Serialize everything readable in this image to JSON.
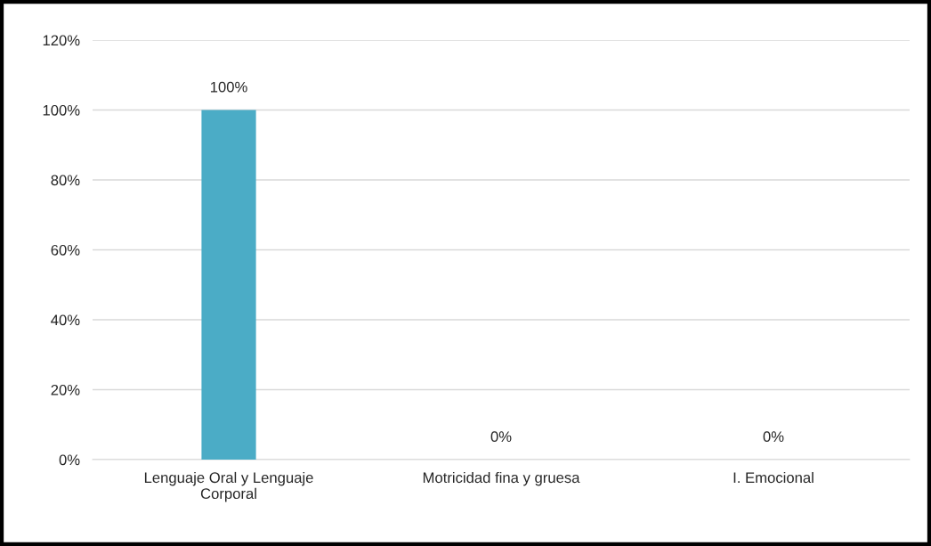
{
  "chart_data": {
    "type": "bar",
    "categories": [
      "Lenguaje Oral y Lenguaje\nCorporal",
      "Motricidad fina y gruesa",
      "I. Emocional"
    ],
    "values": [
      100,
      0,
      0
    ],
    "color": "#4bacc6",
    "value_labels": [
      "100%",
      "0%",
      "0%"
    ],
    "ylim": [
      0,
      120
    ],
    "yticks": [
      {
        "value": 0,
        "label": "0%"
      },
      {
        "value": 20,
        "label": "20%"
      },
      {
        "value": 40,
        "label": "40%"
      },
      {
        "value": 60,
        "label": "60%"
      },
      {
        "value": 80,
        "label": "80%"
      },
      {
        "value": 100,
        "label": "100%"
      },
      {
        "value": 120,
        "label": "120%"
      }
    ],
    "grid": "y",
    "legend": false
  }
}
